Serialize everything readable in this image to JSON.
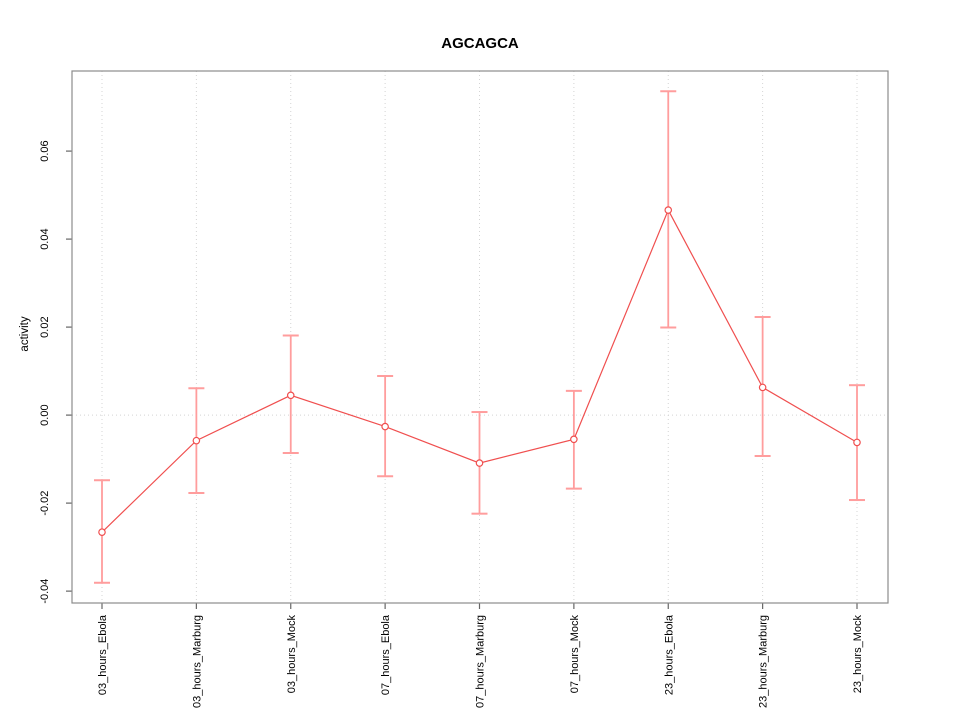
{
  "chart_data": {
    "type": "line",
    "title": "AGCAGCA",
    "xlabel": "",
    "ylabel": "activity",
    "legend": "none",
    "categories": [
      "03_hours_Ebola",
      "03_hours_Marburg",
      "03_hours_Mock",
      "07_hours_Ebola",
      "07_hours_Marburg",
      "07_hours_Mock",
      "23_hours_Ebola",
      "23_hours_Marburg",
      "23_hours_Mock"
    ],
    "series": [
      {
        "name": "activity",
        "means": [
          -0.0266,
          -0.0058,
          0.0045,
          -0.0026,
          -0.0109,
          -0.0055,
          0.0466,
          0.0063,
          -0.0062
        ],
        "upper": [
          -0.0148,
          0.0061,
          0.0181,
          0.0089,
          0.0007,
          0.0055,
          0.0736,
          0.0223,
          0.0068
        ],
        "lower": [
          -0.0381,
          -0.0177,
          -0.0086,
          -0.0139,
          -0.0224,
          -0.0167,
          0.0199,
          -0.0093,
          -0.0193
        ]
      }
    ],
    "yticks": [
      -0.04,
      -0.02,
      0,
      0.02,
      0.04,
      0.06
    ],
    "ytick_labels": [
      "-0.04",
      "-0.02",
      "0.00",
      "0.02",
      "0.04",
      "0.06"
    ],
    "ylim": [
      -0.0427,
      0.0782
    ],
    "grid": {
      "vertical": "dotted line at each category",
      "horizontal": "dotted line at y=0"
    },
    "colors": {
      "line": "#f04f4f",
      "point": "#f04f4f",
      "error_bar": "#ff9d9d",
      "grid": "#d4d4d4",
      "box": "#8c8c8c",
      "tick": "#666666",
      "text": "#000000"
    }
  }
}
